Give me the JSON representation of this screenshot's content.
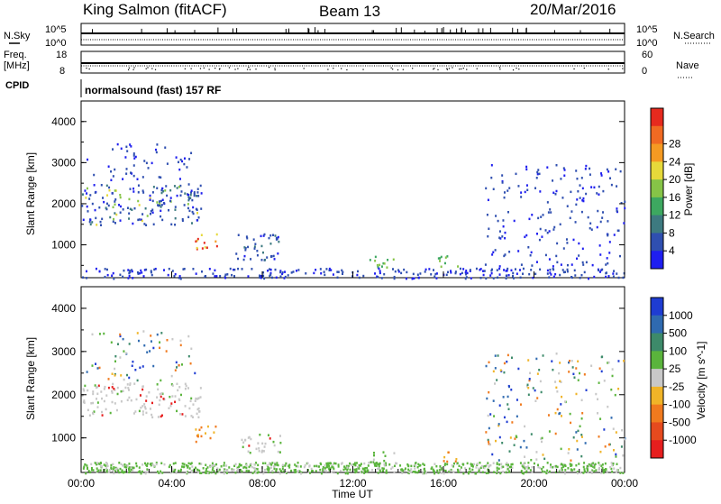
{
  "header": {
    "station": "King Salmon (fitACF)",
    "beam": "Beam 13",
    "date": "20/Mar/2016"
  },
  "strip_labels": {
    "nsky": "N.Sky",
    "nsearch": "N.Search",
    "freq_line1": "Freq.",
    "freq_line2": "[MHz]",
    "nave": "Nave",
    "cpid": "CPID",
    "cpid_value": "normalsound (fast) 157 RF",
    "noise_ticks_left": [
      "10^5",
      "10^0"
    ],
    "noise_ticks_right": [
      "10^5",
      "10^0"
    ],
    "freq_ticks": [
      "18",
      "8"
    ],
    "nave_ticks": [
      "60",
      "0"
    ]
  },
  "chart_data": [
    {
      "type": "heatmap",
      "panel": "power",
      "xlabel": "",
      "ylabel": "Slant Range [km]",
      "ylim": [
        200,
        4500
      ],
      "yticks": [
        "1000",
        "2000",
        "3000",
        "4000"
      ],
      "xlim": [
        "00:00",
        "24:00"
      ],
      "colorbar": {
        "label": "Power [dB]",
        "ticks": [
          "4",
          "8",
          "12",
          "16",
          "20",
          "24",
          "28"
        ],
        "colors": [
          "#1e1ef0",
          "#2f4fb0",
          "#3d7a80",
          "#3da860",
          "#86c447",
          "#e6d93a",
          "#f59a22",
          "#f06a22",
          "#e62a1e"
        ]
      },
      "echo_regions": [
        {
          "t_start": 0.0,
          "t_end": 5.3,
          "range_min": 1500,
          "range_max": 2500,
          "level": "8-12 dB",
          "peak": "16-20 dB"
        },
        {
          "t_start": 0.2,
          "t_end": 5.0,
          "range_min": 2600,
          "range_max": 3500,
          "level": "4-8 dB"
        },
        {
          "t_start": 5.0,
          "t_end": 6.0,
          "range_min": 900,
          "range_max": 1300,
          "level": "16-28 dB"
        },
        {
          "t_start": 6.8,
          "t_end": 8.8,
          "range_min": 650,
          "range_max": 1300,
          "level": "8-12 dB"
        },
        {
          "t_start": 12.6,
          "t_end": 13.8,
          "range_min": 450,
          "range_max": 750,
          "level": "12-16 dB"
        },
        {
          "t_start": 15.7,
          "t_end": 16.6,
          "range_min": 450,
          "range_max": 750,
          "level": "12-16 dB"
        },
        {
          "t_start": 17.8,
          "t_end": 24.0,
          "range_min": 500,
          "range_max": 3000,
          "level": "4-8 dB"
        },
        {
          "t_start": 0.0,
          "t_end": 24.0,
          "range_min": 200,
          "range_max": 450,
          "level": "4-8 dB"
        }
      ]
    },
    {
      "type": "heatmap",
      "panel": "velocity",
      "xlabel": "Time UT",
      "ylabel": "Slant Range [km]",
      "ylim": [
        200,
        4500
      ],
      "yticks": [
        "1000",
        "2000",
        "3000",
        "4000"
      ],
      "xticks": [
        "00:00",
        "04:00",
        "08:00",
        "12:00",
        "16:00",
        "20:00",
        "00:00"
      ],
      "colorbar": {
        "label": "Velocity [m s^-1]",
        "ticks": [
          "1000",
          "500",
          "100",
          "25",
          "-25",
          "-100",
          "-500",
          "-1000"
        ],
        "colors": [
          "#1e3cd2",
          "#2f6ab0",
          "#3d8a6a",
          "#5ab43c",
          "#c8c8c8",
          "#f0b428",
          "#f07a1e",
          "#e64a1e",
          "#e61e1e"
        ]
      },
      "echo_regions": [
        {
          "t_start": 0.0,
          "t_end": 5.3,
          "range_min": 1500,
          "range_max": 2300,
          "level": "-25 to 25 (ground scatter)"
        },
        {
          "t_start": 0.2,
          "t_end": 5.0,
          "range_min": 2300,
          "range_max": 3500,
          "level": "mixed"
        },
        {
          "t_start": 5.0,
          "t_end": 6.0,
          "range_min": 900,
          "range_max": 1300,
          "level": "-100 to -500"
        },
        {
          "t_start": 6.8,
          "t_end": 8.8,
          "range_min": 650,
          "range_max": 1100,
          "level": "-25 to 25"
        },
        {
          "t_start": 12.6,
          "t_end": 13.8,
          "range_min": 450,
          "range_max": 700,
          "level": "25 to 100"
        },
        {
          "t_start": 15.7,
          "t_end": 16.6,
          "range_min": 450,
          "range_max": 700,
          "level": "-100 to -500"
        },
        {
          "t_start": 17.8,
          "t_end": 24.0,
          "range_min": 500,
          "range_max": 3000,
          "level": "mixed"
        },
        {
          "t_start": 0.0,
          "t_end": 24.0,
          "range_min": 200,
          "range_max": 450,
          "level": "25 to 100"
        }
      ]
    }
  ]
}
